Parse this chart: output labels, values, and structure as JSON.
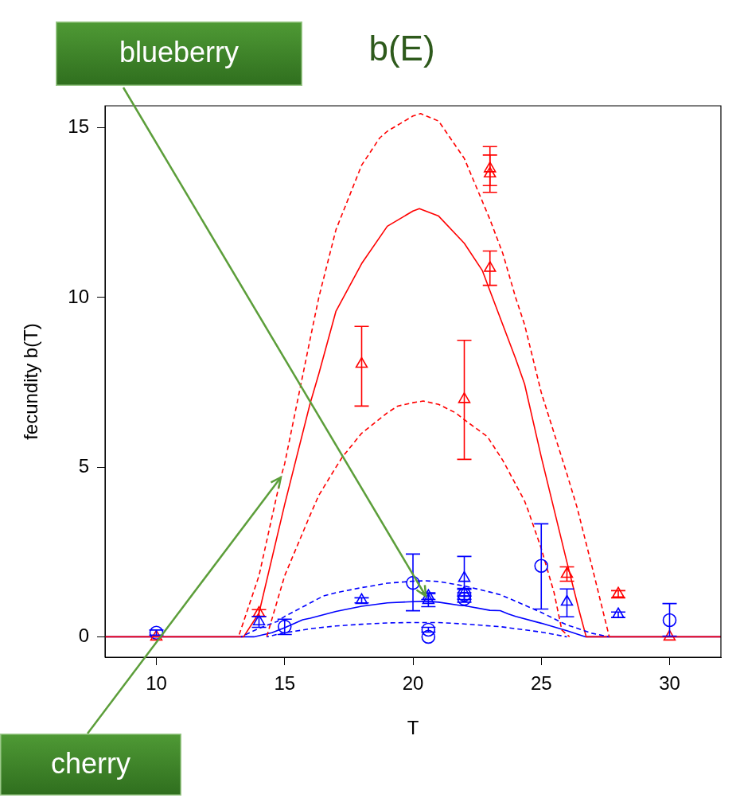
{
  "chart_data": {
    "type": "scatter",
    "title": "b(E)",
    "xlabel": "T",
    "ylabel": "fecundity b(T)",
    "xlim": [
      8,
      32
    ],
    "xticks": [
      10,
      15,
      20,
      25,
      30
    ],
    "ylim": [
      -0.6,
      15.65
    ],
    "yticks": [
      0,
      5,
      10,
      15
    ],
    "grid": false,
    "legend": false,
    "annotations": [
      {
        "text": "blueberry",
        "x": 20.5,
        "y": 1.2
      },
      {
        "text": "cherry",
        "x": 14.85,
        "y": 4.7
      }
    ],
    "series": [
      {
        "type": "line",
        "color": "#ff0000",
        "line_style": "dashed",
        "x": [
          13.2,
          14,
          14.85,
          15,
          16,
          16.33,
          17,
          18,
          18.7,
          19,
          20,
          20.3,
          21,
          22,
          22.5,
          23,
          23.5,
          24,
          24.35,
          25,
          26,
          26.4,
          27,
          27.65
        ],
        "values": [
          0,
          1.8,
          4.7,
          5.1,
          8.8,
          10,
          12,
          13.9,
          14.7,
          14.9,
          15.35,
          15.42,
          15.2,
          14.1,
          13.2,
          12.3,
          11.3,
          10,
          9.2,
          7.2,
          4.8,
          3.8,
          2,
          0
        ]
      },
      {
        "type": "line",
        "color": "#ff0000",
        "line_style": "solid",
        "x": [
          8,
          13.4,
          14,
          15,
          16,
          16.33,
          17,
          18,
          19,
          20,
          20.25,
          21,
          22,
          22.7,
          23,
          24,
          24.35,
          25,
          26,
          26.5,
          26.75,
          32
        ],
        "values": [
          0,
          0,
          0.7,
          3.9,
          6.9,
          7.75,
          9.6,
          11,
          12.1,
          12.55,
          12.62,
          12.4,
          11.6,
          10.8,
          10.2,
          8.2,
          7.45,
          5.3,
          2.2,
          0.7,
          0,
          0
        ]
      },
      {
        "type": "line",
        "color": "#ff0000",
        "line_style": "dashed",
        "x": [
          14.3,
          15,
          16,
          16.33,
          17,
          17.25,
          18,
          19,
          19.4,
          20,
          20.4,
          21,
          21.67,
          22,
          22.9,
          23.5,
          24,
          24.35,
          24.5,
          25,
          25.5,
          25.8,
          26.1
        ],
        "values": [
          0,
          1.8,
          3.6,
          4.17,
          5,
          5.3,
          6,
          6.6,
          6.8,
          6.9,
          6.95,
          6.85,
          6.6,
          6.4,
          5.9,
          5.2,
          4.5,
          4,
          3.7,
          2.6,
          1.3,
          0.2,
          0
        ]
      },
      {
        "type": "line",
        "color": "#0000ff",
        "line_style": "dashed",
        "x": [
          13.3,
          14,
          14.7,
          15,
          16,
          16.5,
          17,
          18,
          18.4,
          19,
          20,
          20.5,
          21,
          22,
          23,
          23.4,
          24,
          25,
          25.8,
          26,
          27,
          27.65
        ],
        "values": [
          0,
          0.25,
          0.45,
          0.6,
          1,
          1.2,
          1.3,
          1.45,
          1.5,
          1.58,
          1.64,
          1.65,
          1.63,
          1.5,
          1.32,
          1.24,
          1.05,
          0.72,
          0.42,
          0.35,
          0.1,
          0
        ]
      },
      {
        "type": "line",
        "color": "#0000ff",
        "line_style": "solid",
        "x": [
          8,
          13.8,
          14.5,
          15,
          15.7,
          16,
          17,
          18,
          19,
          19.8,
          20.5,
          21,
          21.9,
          22,
          23,
          23.4,
          23.7,
          24,
          25,
          26,
          26.73,
          32
        ],
        "values": [
          0,
          0,
          0.12,
          0.27,
          0.5,
          0.55,
          0.75,
          0.9,
          1,
          1.03,
          1.05,
          1.02,
          0.92,
          0.92,
          0.78,
          0.77,
          0.68,
          0.6,
          0.4,
          0.18,
          0,
          0
        ]
      },
      {
        "type": "line",
        "color": "#0000ff",
        "line_style": "dashed",
        "x": [
          14.3,
          15,
          15.7,
          16,
          17,
          18,
          19,
          19.8,
          20,
          21,
          22,
          23,
          23.4,
          24,
          25,
          26
        ],
        "values": [
          0,
          0.12,
          0.2,
          0.24,
          0.32,
          0.37,
          0.41,
          0.42,
          0.42,
          0.42,
          0.38,
          0.32,
          0.3,
          0.24,
          0.14,
          0
        ]
      },
      {
        "type": "scatter",
        "color": "#ff0000",
        "marker": "triangle",
        "x": [
          10,
          14,
          18,
          22,
          23,
          23,
          23,
          26,
          28,
          30
        ],
        "values": [
          0,
          0.7,
          8.04,
          7,
          13.8,
          13.65,
          10.87,
          1.85,
          1.27,
          0
        ],
        "errors": [
          null,
          [
            0.6,
            0.8
          ],
          [
            6.8,
            9.15
          ],
          [
            5.23,
            8.74
          ],
          [
            13.1,
            14.45
          ],
          [
            13.3,
            14.2
          ],
          [
            10.36,
            11.37
          ],
          [
            1.64,
            2.06
          ],
          [
            1.15,
            1.36
          ],
          null
        ]
      },
      {
        "type": "scatter",
        "color": "#0000ff",
        "marker": "circle",
        "x": [
          10,
          15,
          20,
          20.6,
          20.6,
          22,
          22,
          25,
          30
        ],
        "values": [
          0.12,
          0.3,
          1.59,
          0.21,
          0,
          1.12,
          1.24,
          2.09,
          0.49
        ],
        "errors": [
          [
            0.05,
            0.2
          ],
          [
            0.07,
            0.52
          ],
          [
            0.77,
            2.44
          ],
          [
            0.14,
            0.28
          ],
          null,
          [
            1.02,
            1.2
          ],
          [
            1.1,
            1.3
          ],
          [
            0.82,
            3.33
          ],
          [
            0.02,
            0.98
          ]
        ]
      },
      {
        "type": "scatter",
        "color": "#0000ff",
        "marker": "triangle",
        "x": [
          14,
          18,
          20.6,
          20.6,
          22,
          22,
          26,
          28
        ],
        "values": [
          0.45,
          1.08,
          1.08,
          1.2,
          1.73,
          1.29,
          1.03,
          0.66
        ],
        "errors": [
          [
            0.28,
            0.6
          ],
          [
            1,
            1.15
          ],
          [
            0.89,
            1.27
          ],
          [
            1.1,
            1.3
          ],
          [
            1.43,
            2.37
          ],
          [
            1.2,
            1.4
          ],
          [
            0.59,
            1.41
          ],
          [
            0.57,
            0.73
          ]
        ]
      }
    ]
  }
}
